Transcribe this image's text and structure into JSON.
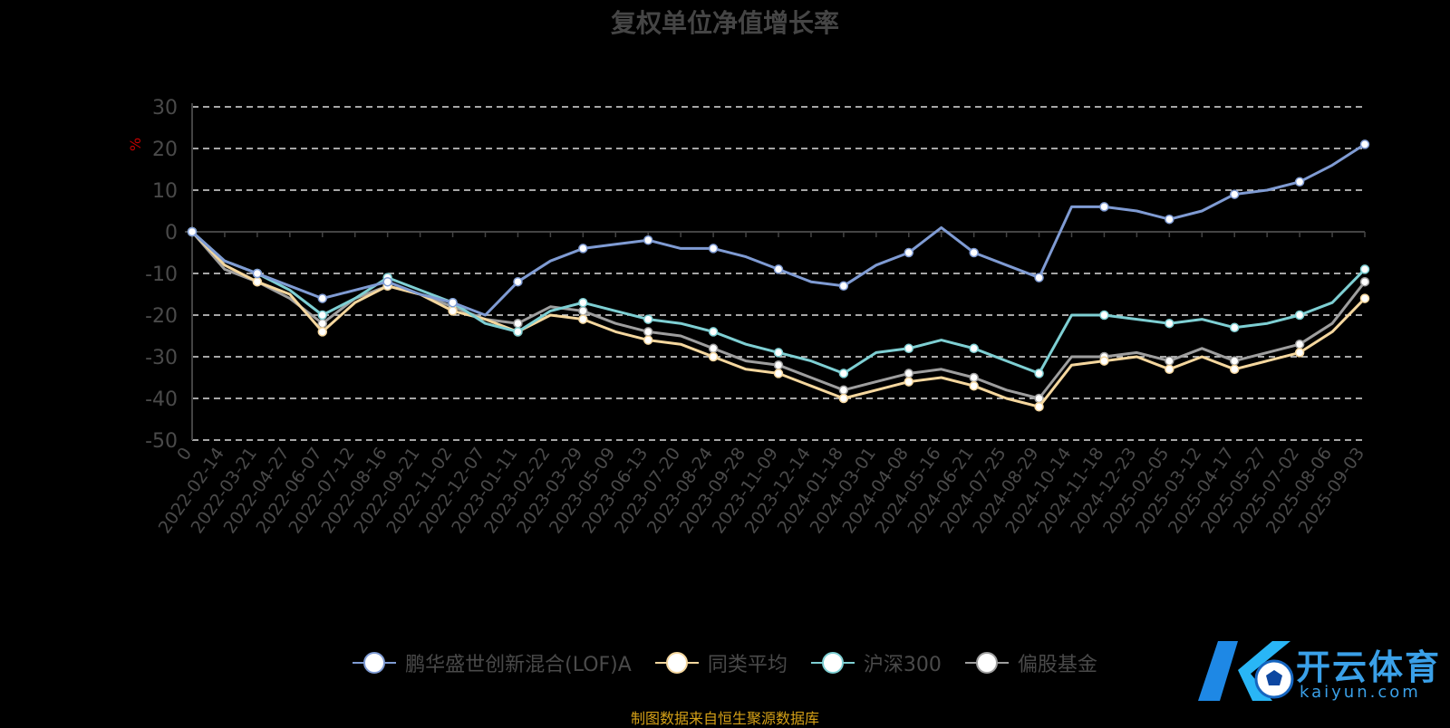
{
  "chart_data": {
    "type": "line",
    "title": "复权单位净值增长率",
    "ylabel": "%",
    "ylim": [
      -50,
      30
    ],
    "yticks": [
      30,
      20,
      10,
      0,
      -10,
      -20,
      -30,
      -40,
      -50
    ],
    "grid": true,
    "legend_position": "bottom",
    "x_ticks": [
      "0",
      "2022-02-14",
      "2022-03-21",
      "2022-04-27",
      "2022-06-07",
      "2022-07-12",
      "2022-08-16",
      "2022-09-21",
      "2022-11-02",
      "2022-12-07",
      "2023-01-11",
      "2023-02-22",
      "2023-03-29",
      "2023-05-09",
      "2023-06-13",
      "2023-07-20",
      "2023-08-24",
      "2023-09-28",
      "2023-11-09",
      "2023-12-14",
      "2024-01-18",
      "2024-03-01",
      "2024-04-08",
      "2024-05-16",
      "2024-06-21",
      "2024-07-25",
      "2024-08-29",
      "2024-10-14",
      "2024-11-18",
      "2024-12-23",
      "2025-02-05",
      "2025-03-12",
      "2025-04-17",
      "2025-05-27",
      "2025-07-02",
      "2025-08-06",
      "2025-09-03"
    ],
    "series": [
      {
        "name": "鹏华盛世创新混合(LOF)A",
        "color": "#7f9bd3",
        "values": [
          0,
          -7,
          -10,
          -13,
          -16,
          -14,
          -12,
          -15,
          -17,
          -20,
          -12,
          -7,
          -4,
          -3,
          -2,
          -4,
          -4,
          -6,
          -9,
          -12,
          -13,
          -8,
          -5,
          1,
          -5,
          -8,
          -11,
          6,
          6,
          5,
          3,
          5,
          9,
          10,
          12,
          16,
          21
        ]
      },
      {
        "name": "同类平均",
        "color": "#f5d79e",
        "values": [
          0,
          -8,
          -12,
          -15,
          -24,
          -17,
          -13,
          -15,
          -19,
          -21,
          -24,
          -20,
          -21,
          -24,
          -26,
          -27,
          -30,
          -33,
          -34,
          -37,
          -40,
          -38,
          -36,
          -35,
          -37,
          -40,
          -42,
          -32,
          -31,
          -30,
          -33,
          -30,
          -33,
          -31,
          -29,
          -24,
          -16
        ]
      },
      {
        "name": "沪深300",
        "color": "#7ecfd3",
        "values": [
          0,
          -7,
          -10,
          -14,
          -20,
          -16,
          -11,
          -14,
          -17,
          -22,
          -24,
          -19,
          -17,
          -19,
          -21,
          -22,
          -24,
          -27,
          -29,
          -31,
          -34,
          -29,
          -28,
          -26,
          -28,
          -31,
          -34,
          -20,
          -20,
          -21,
          -22,
          -21,
          -23,
          -22,
          -20,
          -17,
          -9
        ]
      },
      {
        "name": "偏股基金",
        "color": "#9e9e9e",
        "values": [
          0,
          -9,
          -12,
          -16,
          -22,
          -16,
          -13,
          -15,
          -18,
          -21,
          -22,
          -18,
          -19,
          -22,
          -24,
          -25,
          -28,
          -31,
          -32,
          -35,
          -38,
          -36,
          -34,
          -33,
          -35,
          -38,
          -40,
          -30,
          -30,
          -29,
          -31,
          -28,
          -31,
          -29,
          -27,
          -22,
          -12
        ]
      }
    ]
  },
  "source_note": "制图数据来自恒生聚源数据库",
  "watermark": {
    "name": "开云体育",
    "url": "kaiyun.com"
  }
}
